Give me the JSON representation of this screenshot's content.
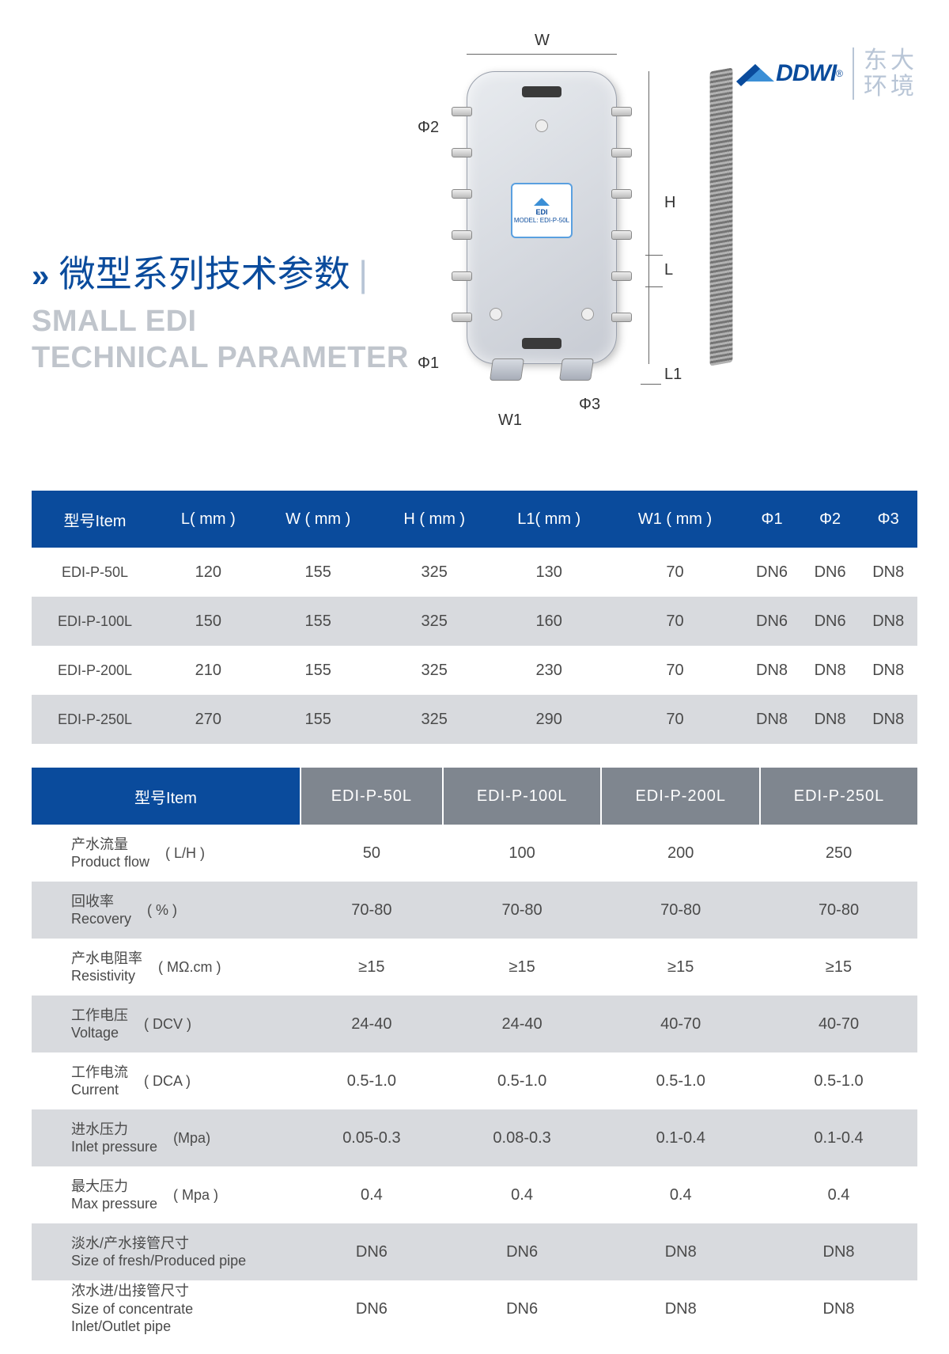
{
  "logo": {
    "brand": "DDWI",
    "reg": "®",
    "cn_line1": "东大",
    "cn_line2": "环境"
  },
  "title": {
    "arrows": "»",
    "cn": "微型系列技术参数",
    "bar": "|",
    "en_line1": "SMALL EDI",
    "en_line2": "TECHNICAL PARAMETER"
  },
  "diagram": {
    "labels": {
      "W": "W",
      "H": "H",
      "L": "L",
      "L1": "L1",
      "W1": "W1",
      "phi1": "Φ1",
      "phi2": "Φ2",
      "phi3": "Φ3"
    },
    "plate_model": "MODEL: EDI-P-50L"
  },
  "table1": {
    "header_bg": "#0a4b9c",
    "row_alt_bg": "#d8dade",
    "columns": [
      "型号Item",
      "L( mm )",
      "W ( mm )",
      "H ( mm )",
      "L1( mm )",
      "W1 ( mm )",
      "Φ1",
      "Φ2",
      "Φ3"
    ],
    "rows": [
      [
        "EDI-P-50L",
        "120",
        "155",
        "325",
        "130",
        "70",
        "DN6",
        "DN6",
        "DN8"
      ],
      [
        "EDI-P-100L",
        "150",
        "155",
        "325",
        "160",
        "70",
        "DN6",
        "DN6",
        "DN8"
      ],
      [
        "EDI-P-200L",
        "210",
        "155",
        "325",
        "230",
        "70",
        "DN8",
        "DN8",
        "DN8"
      ],
      [
        "EDI-P-250L",
        "270",
        "155",
        "325",
        "290",
        "70",
        "DN8",
        "DN8",
        "DN8"
      ]
    ]
  },
  "table2": {
    "header_first_bg": "#0a4b9c",
    "header_rest_bg": "#7f868f",
    "row_alt_bg": "#d8dade",
    "columns": [
      "型号Item",
      "EDI-P-50L",
      "EDI-P-100L",
      "EDI-P-200L",
      "EDI-P-250L"
    ],
    "params": [
      {
        "cn": "产水流量",
        "en": "Product flow",
        "unit": "( L/H )",
        "vals": [
          "50",
          "100",
          "200",
          "250"
        ]
      },
      {
        "cn": "回收率",
        "en": "Recovery",
        "unit": "( % )",
        "vals": [
          "70-80",
          "70-80",
          "70-80",
          "70-80"
        ]
      },
      {
        "cn": "产水电阻率",
        "en": "Resistivity",
        "unit": "( MΩ.cm )",
        "vals": [
          "≥15",
          "≥15",
          "≥15",
          "≥15"
        ]
      },
      {
        "cn": "工作电压",
        "en": "Voltage",
        "unit": "( DCV )",
        "vals": [
          "24-40",
          "24-40",
          "40-70",
          "40-70"
        ]
      },
      {
        "cn": "工作电流",
        "en": "Current",
        "unit": "( DCA )",
        "vals": [
          "0.5-1.0",
          "0.5-1.0",
          "0.5-1.0",
          "0.5-1.0"
        ]
      },
      {
        "cn": "进水压力",
        "en": "Inlet pressure",
        "unit": "(Mpa)",
        "vals": [
          "0.05-0.3",
          "0.08-0.3",
          "0.1-0.4",
          "0.1-0.4"
        ]
      },
      {
        "cn": "最大压力",
        "en": "Max pressure",
        "unit": "( Mpa )",
        "vals": [
          "0.4",
          "0.4",
          "0.4",
          "0.4"
        ]
      },
      {
        "cn": "淡水/产水接管尺寸",
        "en": "Size of fresh/Produced pipe",
        "unit": "",
        "vals": [
          "DN6",
          "DN6",
          "DN8",
          "DN8"
        ]
      },
      {
        "cn": "浓水进/出接管尺寸",
        "en": "Size of concentrate Inlet/Outlet pipe",
        "unit": "",
        "vals": [
          "DN6",
          "DN6",
          "DN8",
          "DN8"
        ]
      }
    ]
  }
}
